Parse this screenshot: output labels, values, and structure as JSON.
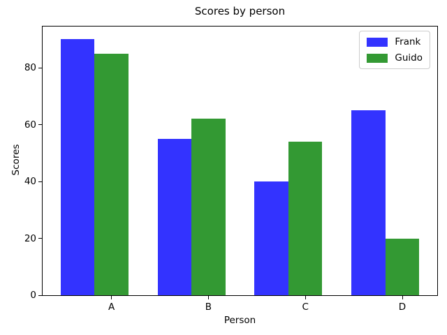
{
  "chart_data": {
    "type": "bar",
    "title": "Scores by person",
    "xlabel": "Person",
    "ylabel": "Scores",
    "categories": [
      "A",
      "B",
      "C",
      "D"
    ],
    "series": [
      {
        "name": "Frank",
        "color": "#3333ff",
        "values": [
          90,
          55,
          40,
          65
        ]
      },
      {
        "name": "Guido",
        "color": "#339933",
        "values": [
          85,
          62,
          54,
          20
        ]
      }
    ],
    "yticks": [
      0,
      20,
      40,
      60,
      80
    ],
    "ylim": [
      0,
      94.5
    ],
    "xlim": [
      -0.36,
      3.71
    ],
    "bar_width_units": 0.35,
    "tick_offset_units": 0.35,
    "grid": false,
    "legend_position": "upper right",
    "background_color": "#ffffff",
    "axis_color": "#000000"
  }
}
